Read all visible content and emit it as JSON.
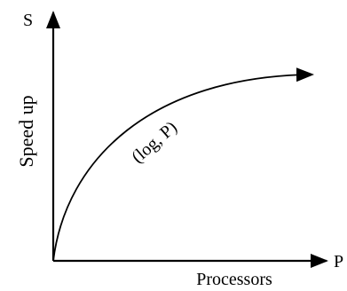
{
  "diagram": {
    "y_axis_symbol": "S",
    "x_axis_symbol": "P",
    "y_axis_label": "Speed up",
    "x_axis_label": "Processors",
    "curve_label": "(log, P)",
    "colors": {
      "stroke": "#000000",
      "background": "#ffffff"
    }
  }
}
